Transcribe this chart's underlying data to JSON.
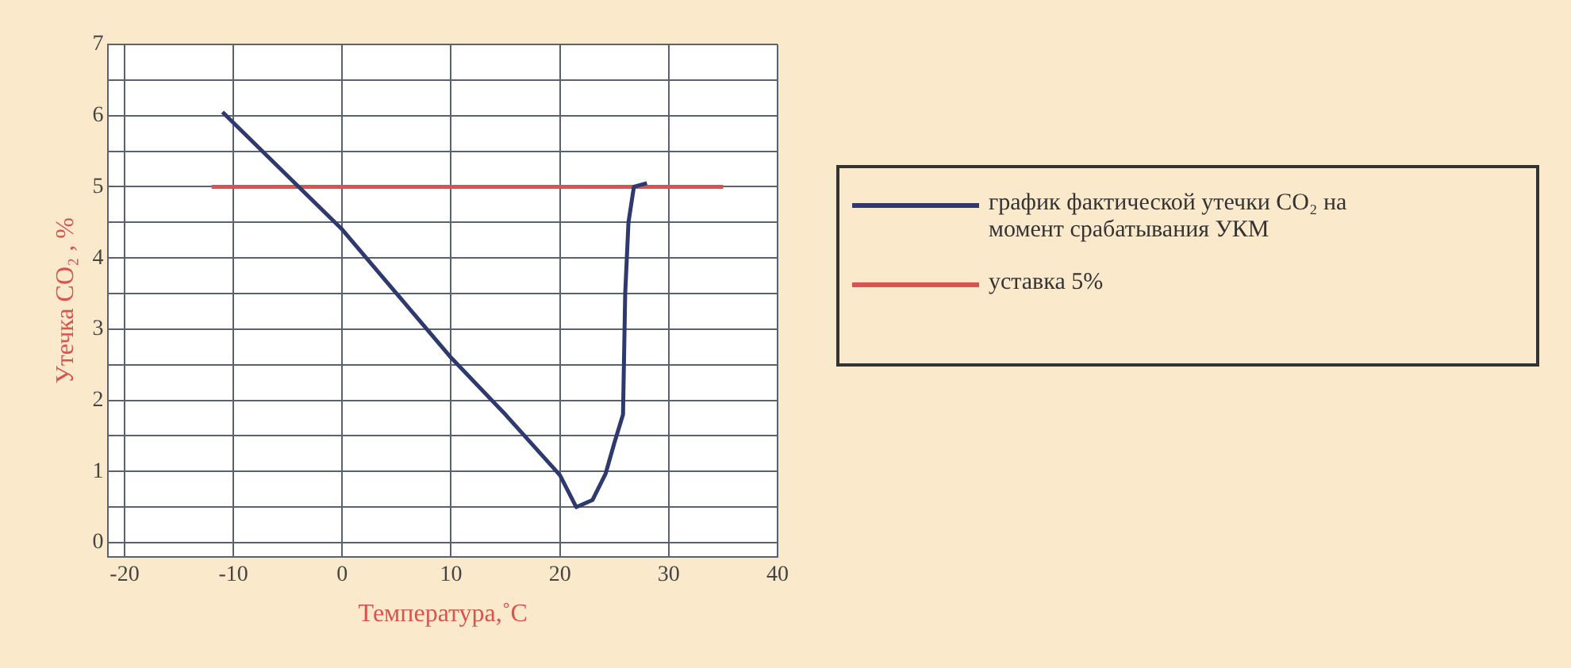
{
  "chart_data": {
    "type": "line",
    "xlabel": "Температура,˚С",
    "ylabel": "Утечка CO₂ , %",
    "xlim": [
      -21.5,
      40
    ],
    "xticks": [
      -20,
      -10,
      0,
      10,
      20,
      30,
      40
    ],
    "ylim": [
      -0.2,
      7
    ],
    "yticks": [
      0,
      {
        "value": 0.5,
        "label": null
      },
      1,
      {
        "value": 1.5,
        "label": null
      },
      2,
      {
        "value": 2.5,
        "label": null
      },
      3,
      {
        "value": 3.5,
        "label": null
      },
      4,
      {
        "value": 4.5,
        "label": null
      },
      5,
      {
        "value": 5.5,
        "label": null
      },
      6,
      {
        "value": 6.5,
        "label": null
      },
      7
    ],
    "grid": true,
    "legend": "right",
    "marker": "none",
    "line_style": "solid",
    "series": [
      {
        "name": "график фактической утечки CO₂ на момент срабатывания УКМ",
        "color": "#2e3a6e",
        "x": [
          -11,
          -4,
          0,
          5,
          10,
          15,
          20,
          21.5,
          23,
          24.2,
          25,
          25.8,
          26,
          26.3,
          26.8,
          28
        ],
        "values": [
          6.05,
          5,
          4.4,
          3.5,
          2.6,
          1.8,
          0.95,
          0.5,
          0.6,
          0.97,
          1.4,
          1.8,
          3.5,
          4.5,
          5,
          5.05
        ]
      },
      {
        "name": "уставка 5%",
        "color": "#d9534f",
        "x": [
          -12,
          35
        ],
        "values": [
          5,
          5
        ]
      }
    ]
  }
}
